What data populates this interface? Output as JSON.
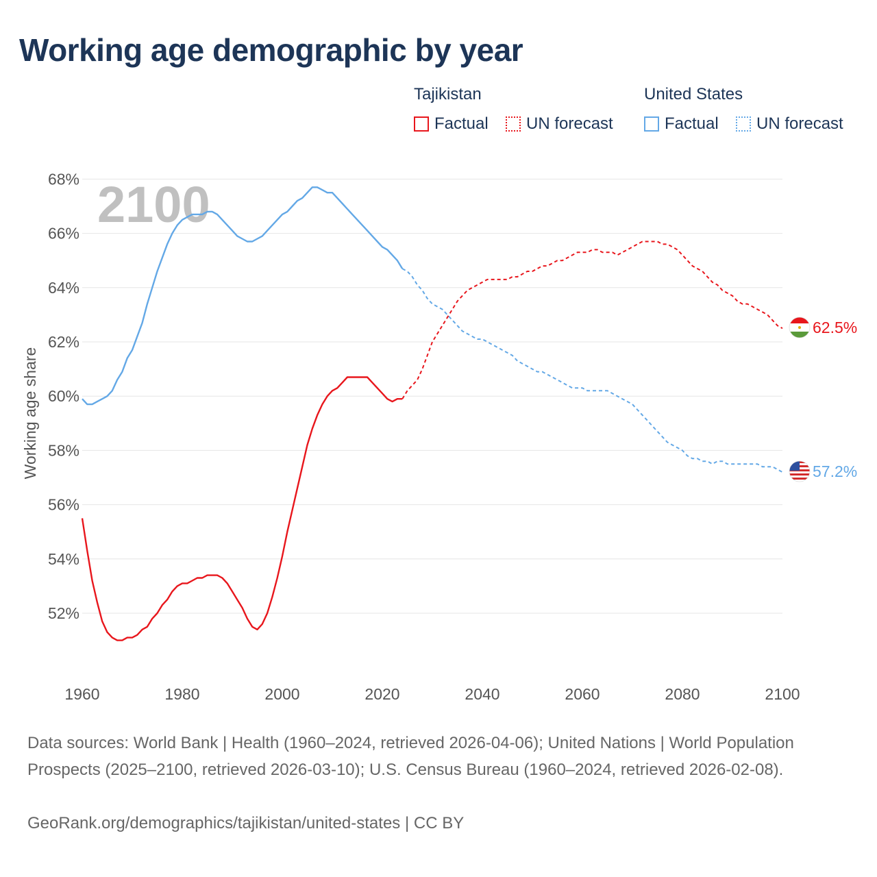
{
  "title": "Working age demographic by year",
  "legend": {
    "groups": [
      {
        "name": "Tajikistan",
        "color": "#e8161c",
        "items": [
          "Factual",
          "UN forecast"
        ]
      },
      {
        "name": "United States",
        "color": "#63a8e6",
        "items": [
          "Factual",
          "UN forecast"
        ]
      }
    ]
  },
  "footer": {
    "sources": "Data sources: World Bank | Health (1960–2024, retrieved 2026-04-06); United Nations | World Population Prospects (2025–2100, retrieved 2026-03-10); U.S. Census Bureau (1960–2024, retrieved 2026-02-08).",
    "credit": "GeoRank.org/demographics/tajikistan/united-states | CC BY"
  },
  "chart_data": {
    "type": "line",
    "title": "Working age demographic by year",
    "ylabel": "Working age share",
    "xlabel": "",
    "year_watermark": "2100",
    "xlim": [
      1960,
      2100
    ],
    "ylim": [
      50,
      69
    ],
    "x_ticks": [
      "1960",
      "1980",
      "2000",
      "2020",
      "2040",
      "2060",
      "2080",
      "2100"
    ],
    "y_ticks": [
      "52%",
      "54%",
      "56%",
      "58%",
      "60%",
      "62%",
      "64%",
      "66%",
      "68%"
    ],
    "grid": true,
    "series": [
      {
        "name": "Tajikistan",
        "color": "#e8161c",
        "end_label": "62.5%",
        "flag": "tajikistan-flag-icon",
        "forecast_from": 2024,
        "points": [
          [
            1960,
            55.5
          ],
          [
            1961,
            54.3
          ],
          [
            1962,
            53.2
          ],
          [
            1963,
            52.4
          ],
          [
            1964,
            51.7
          ],
          [
            1965,
            51.3
          ],
          [
            1966,
            51.1
          ],
          [
            1967,
            51.0
          ],
          [
            1968,
            51.0
          ],
          [
            1969,
            51.1
          ],
          [
            1970,
            51.1
          ],
          [
            1971,
            51.2
          ],
          [
            1972,
            51.4
          ],
          [
            1973,
            51.5
          ],
          [
            1974,
            51.8
          ],
          [
            1975,
            52.0
          ],
          [
            1976,
            52.3
          ],
          [
            1977,
            52.5
          ],
          [
            1978,
            52.8
          ],
          [
            1979,
            53.0
          ],
          [
            1980,
            53.1
          ],
          [
            1981,
            53.1
          ],
          [
            1982,
            53.2
          ],
          [
            1983,
            53.3
          ],
          [
            1984,
            53.3
          ],
          [
            1985,
            53.4
          ],
          [
            1986,
            53.4
          ],
          [
            1987,
            53.4
          ],
          [
            1988,
            53.3
          ],
          [
            1989,
            53.1
          ],
          [
            1990,
            52.8
          ],
          [
            1991,
            52.5
          ],
          [
            1992,
            52.2
          ],
          [
            1993,
            51.8
          ],
          [
            1994,
            51.5
          ],
          [
            1995,
            51.4
          ],
          [
            1996,
            51.6
          ],
          [
            1997,
            52.0
          ],
          [
            1998,
            52.6
          ],
          [
            1999,
            53.3
          ],
          [
            2000,
            54.1
          ],
          [
            2001,
            55.0
          ],
          [
            2002,
            55.8
          ],
          [
            2003,
            56.6
          ],
          [
            2004,
            57.4
          ],
          [
            2005,
            58.2
          ],
          [
            2006,
            58.8
          ],
          [
            2007,
            59.3
          ],
          [
            2008,
            59.7
          ],
          [
            2009,
            60.0
          ],
          [
            2010,
            60.2
          ],
          [
            2011,
            60.3
          ],
          [
            2012,
            60.5
          ],
          [
            2013,
            60.7
          ],
          [
            2014,
            60.7
          ],
          [
            2015,
            60.7
          ],
          [
            2016,
            60.7
          ],
          [
            2017,
            60.7
          ],
          [
            2018,
            60.5
          ],
          [
            2019,
            60.3
          ],
          [
            2020,
            60.1
          ],
          [
            2021,
            59.9
          ],
          [
            2022,
            59.8
          ],
          [
            2023,
            59.9
          ],
          [
            2024,
            59.9
          ],
          [
            2025,
            60.2
          ],
          [
            2026,
            60.4
          ],
          [
            2027,
            60.6
          ],
          [
            2028,
            61.0
          ],
          [
            2029,
            61.5
          ],
          [
            2030,
            62.0
          ],
          [
            2031,
            62.3
          ],
          [
            2032,
            62.6
          ],
          [
            2033,
            62.9
          ],
          [
            2034,
            63.2
          ],
          [
            2035,
            63.5
          ],
          [
            2036,
            63.7
          ],
          [
            2037,
            63.9
          ],
          [
            2038,
            64.0
          ],
          [
            2039,
            64.1
          ],
          [
            2040,
            64.2
          ],
          [
            2041,
            64.3
          ],
          [
            2042,
            64.3
          ],
          [
            2043,
            64.3
          ],
          [
            2044,
            64.3
          ],
          [
            2045,
            64.3
          ],
          [
            2046,
            64.4
          ],
          [
            2047,
            64.4
          ],
          [
            2048,
            64.5
          ],
          [
            2049,
            64.6
          ],
          [
            2050,
            64.6
          ],
          [
            2051,
            64.7
          ],
          [
            2052,
            64.8
          ],
          [
            2053,
            64.8
          ],
          [
            2054,
            64.9
          ],
          [
            2055,
            65.0
          ],
          [
            2056,
            65.0
          ],
          [
            2057,
            65.1
          ],
          [
            2058,
            65.2
          ],
          [
            2059,
            65.3
          ],
          [
            2060,
            65.3
          ],
          [
            2061,
            65.3
          ],
          [
            2062,
            65.4
          ],
          [
            2063,
            65.4
          ],
          [
            2064,
            65.3
          ],
          [
            2065,
            65.3
          ],
          [
            2066,
            65.3
          ],
          [
            2067,
            65.2
          ],
          [
            2068,
            65.3
          ],
          [
            2069,
            65.4
          ],
          [
            2070,
            65.5
          ],
          [
            2071,
            65.6
          ],
          [
            2072,
            65.7
          ],
          [
            2073,
            65.7
          ],
          [
            2074,
            65.7
          ],
          [
            2075,
            65.7
          ],
          [
            2076,
            65.6
          ],
          [
            2077,
            65.6
          ],
          [
            2078,
            65.5
          ],
          [
            2079,
            65.4
          ],
          [
            2080,
            65.2
          ],
          [
            2081,
            65.0
          ],
          [
            2082,
            64.8
          ],
          [
            2083,
            64.7
          ],
          [
            2084,
            64.6
          ],
          [
            2085,
            64.4
          ],
          [
            2086,
            64.2
          ],
          [
            2087,
            64.1
          ],
          [
            2088,
            63.9
          ],
          [
            2089,
            63.8
          ],
          [
            2090,
            63.7
          ],
          [
            2091,
            63.5
          ],
          [
            2092,
            63.4
          ],
          [
            2093,
            63.4
          ],
          [
            2094,
            63.3
          ],
          [
            2095,
            63.2
          ],
          [
            2096,
            63.1
          ],
          [
            2097,
            63.0
          ],
          [
            2098,
            62.8
          ],
          [
            2099,
            62.6
          ],
          [
            2100,
            62.5
          ]
        ]
      },
      {
        "name": "United States",
        "color": "#63a8e6",
        "end_label": "57.2%",
        "flag": "united-states-flag-icon",
        "forecast_from": 2024,
        "points": [
          [
            1960,
            59.9
          ],
          [
            1961,
            59.7
          ],
          [
            1962,
            59.7
          ],
          [
            1963,
            59.8
          ],
          [
            1964,
            59.9
          ],
          [
            1965,
            60.0
          ],
          [
            1966,
            60.2
          ],
          [
            1967,
            60.6
          ],
          [
            1968,
            60.9
          ],
          [
            1969,
            61.4
          ],
          [
            1970,
            61.7
          ],
          [
            1971,
            62.2
          ],
          [
            1972,
            62.7
          ],
          [
            1973,
            63.4
          ],
          [
            1974,
            64.0
          ],
          [
            1975,
            64.6
          ],
          [
            1976,
            65.1
          ],
          [
            1977,
            65.6
          ],
          [
            1978,
            66.0
          ],
          [
            1979,
            66.3
          ],
          [
            1980,
            66.5
          ],
          [
            1981,
            66.6
          ],
          [
            1982,
            66.7
          ],
          [
            1983,
            66.7
          ],
          [
            1984,
            66.7
          ],
          [
            1985,
            66.8
          ],
          [
            1986,
            66.8
          ],
          [
            1987,
            66.7
          ],
          [
            1988,
            66.5
          ],
          [
            1989,
            66.3
          ],
          [
            1990,
            66.1
          ],
          [
            1991,
            65.9
          ],
          [
            1992,
            65.8
          ],
          [
            1993,
            65.7
          ],
          [
            1994,
            65.7
          ],
          [
            1995,
            65.8
          ],
          [
            1996,
            65.9
          ],
          [
            1997,
            66.1
          ],
          [
            1998,
            66.3
          ],
          [
            1999,
            66.5
          ],
          [
            2000,
            66.7
          ],
          [
            2001,
            66.8
          ],
          [
            2002,
            67.0
          ],
          [
            2003,
            67.2
          ],
          [
            2004,
            67.3
          ],
          [
            2005,
            67.5
          ],
          [
            2006,
            67.7
          ],
          [
            2007,
            67.7
          ],
          [
            2008,
            67.6
          ],
          [
            2009,
            67.5
          ],
          [
            2010,
            67.5
          ],
          [
            2011,
            67.3
          ],
          [
            2012,
            67.1
          ],
          [
            2013,
            66.9
          ],
          [
            2014,
            66.7
          ],
          [
            2015,
            66.5
          ],
          [
            2016,
            66.3
          ],
          [
            2017,
            66.1
          ],
          [
            2018,
            65.9
          ],
          [
            2019,
            65.7
          ],
          [
            2020,
            65.5
          ],
          [
            2021,
            65.4
          ],
          [
            2022,
            65.2
          ],
          [
            2023,
            65.0
          ],
          [
            2024,
            64.7
          ],
          [
            2025,
            64.6
          ],
          [
            2026,
            64.4
          ],
          [
            2027,
            64.1
          ],
          [
            2028,
            63.9
          ],
          [
            2029,
            63.6
          ],
          [
            2030,
            63.4
          ],
          [
            2031,
            63.3
          ],
          [
            2032,
            63.2
          ],
          [
            2033,
            63.0
          ],
          [
            2034,
            62.8
          ],
          [
            2035,
            62.6
          ],
          [
            2036,
            62.4
          ],
          [
            2037,
            62.3
          ],
          [
            2038,
            62.2
          ],
          [
            2039,
            62.1
          ],
          [
            2040,
            62.1
          ],
          [
            2041,
            62.0
          ],
          [
            2042,
            61.9
          ],
          [
            2043,
            61.8
          ],
          [
            2044,
            61.7
          ],
          [
            2045,
            61.6
          ],
          [
            2046,
            61.5
          ],
          [
            2047,
            61.3
          ],
          [
            2048,
            61.2
          ],
          [
            2049,
            61.1
          ],
          [
            2050,
            61.0
          ],
          [
            2051,
            60.9
          ],
          [
            2052,
            60.9
          ],
          [
            2053,
            60.8
          ],
          [
            2054,
            60.7
          ],
          [
            2055,
            60.6
          ],
          [
            2056,
            60.5
          ],
          [
            2057,
            60.4
          ],
          [
            2058,
            60.3
          ],
          [
            2059,
            60.3
          ],
          [
            2060,
            60.3
          ],
          [
            2061,
            60.2
          ],
          [
            2062,
            60.2
          ],
          [
            2063,
            60.2
          ],
          [
            2064,
            60.2
          ],
          [
            2065,
            60.2
          ],
          [
            2066,
            60.1
          ],
          [
            2067,
            60.0
          ],
          [
            2068,
            59.9
          ],
          [
            2069,
            59.8
          ],
          [
            2070,
            59.7
          ],
          [
            2071,
            59.5
          ],
          [
            2072,
            59.3
          ],
          [
            2073,
            59.1
          ],
          [
            2074,
            58.9
          ],
          [
            2075,
            58.7
          ],
          [
            2076,
            58.5
          ],
          [
            2077,
            58.3
          ],
          [
            2078,
            58.2
          ],
          [
            2079,
            58.1
          ],
          [
            2080,
            58.0
          ],
          [
            2081,
            57.8
          ],
          [
            2082,
            57.7
          ],
          [
            2083,
            57.7
          ],
          [
            2084,
            57.6
          ],
          [
            2085,
            57.6
          ],
          [
            2086,
            57.5
          ],
          [
            2087,
            57.6
          ],
          [
            2088,
            57.6
          ],
          [
            2089,
            57.5
          ],
          [
            2090,
            57.5
          ],
          [
            2091,
            57.5
          ],
          [
            2092,
            57.5
          ],
          [
            2093,
            57.5
          ],
          [
            2094,
            57.5
          ],
          [
            2095,
            57.5
          ],
          [
            2096,
            57.4
          ],
          [
            2097,
            57.4
          ],
          [
            2098,
            57.4
          ],
          [
            2099,
            57.3
          ],
          [
            2100,
            57.2
          ]
        ]
      }
    ]
  }
}
